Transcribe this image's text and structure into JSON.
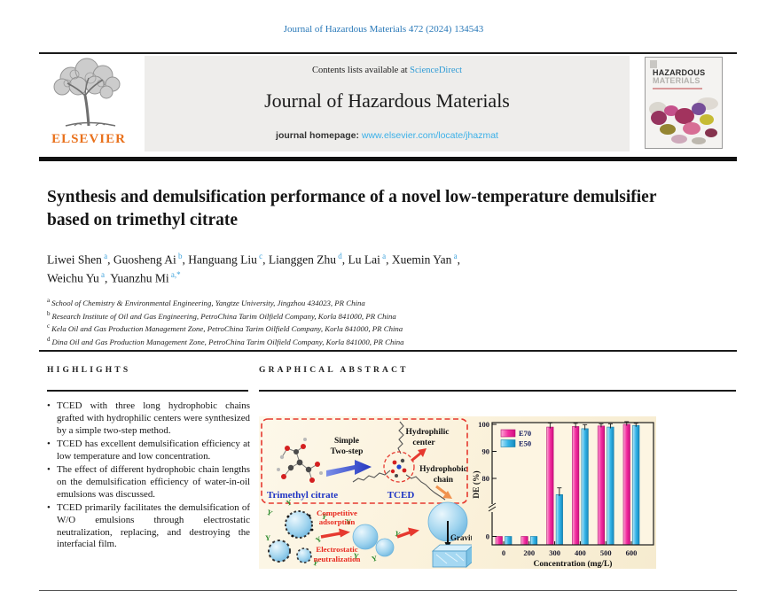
{
  "masthead": {
    "citation": "Journal of Hazardous Materials 472 (2024) 134543",
    "contents_prefix": "Contents lists available at ",
    "contents_link": "ScienceDirect",
    "journal_title": "Journal of Hazardous Materials",
    "homepage_prefix": "journal homepage: ",
    "homepage_url": "www.elsevier.com/locate/jhazmat",
    "publisher": "ELSEVIER",
    "cover_title_line1": "HAZARDOUS",
    "cover_title_line2": "MATERIALS"
  },
  "article": {
    "title": "Synthesis and demulsification performance of a novel low-temperature demulsifier based on trimethyl citrate",
    "authors": [
      {
        "name": "Liwei Shen",
        "sup": "a"
      },
      {
        "name": "Guosheng Ai",
        "sup": "b"
      },
      {
        "name": "Hanguang Liu",
        "sup": "c"
      },
      {
        "name": "Lianggen Zhu",
        "sup": "d"
      },
      {
        "name": "Lu Lai",
        "sup": "a"
      },
      {
        "name": "Xuemin Yan",
        "sup": "a"
      },
      {
        "name": "Weichu Yu",
        "sup": "a"
      },
      {
        "name": "Yuanzhu Mi",
        "sup": "a,*"
      }
    ],
    "authors_break_after": 6,
    "affiliations": [
      {
        "sup": "a",
        "text": "School of Chemistry & Environmental Engineering, Yangtze University, Jingzhou 434023, PR China"
      },
      {
        "sup": "b",
        "text": "Research Institute of Oil and Gas Engineering, PetroChina Tarim Oilfield Company, Korla 841000, PR China"
      },
      {
        "sup": "c",
        "text": "Kela Oil and Gas Production Management Zone, PetroChina Tarim Oilfield Company, Korla 841000, PR China"
      },
      {
        "sup": "d",
        "text": "Dina Oil and Gas Production Management Zone, PetroChina Tarim Oilfield Company, Korla 841000, PR China"
      }
    ]
  },
  "highlights": {
    "heading": "HIGHLIGHTS",
    "items": [
      "TCED with three long hydrophobic chains grafted with hydrophilic centers were synthesized by a simple two-step method.",
      "TCED has excellent demulsification efficiency at low temperature and low concentration.",
      "The effect of different hydrophobic chain lengths on the demulsification efficiency of water-in-oil emulsions was discussed.",
      "TCED primarily facilitates the demulsification of W/O emulsions through electrostatic neutralization, replacing, and destroying the interfacial film."
    ]
  },
  "graphical": {
    "heading": "GRAPHICAL ABSTRACT",
    "labels": {
      "simple_l1": "Simple",
      "simple_l2": "Two-step",
      "trimethyl": "Trimethyl citrate",
      "tced": "TCED",
      "hydrophilic_l1": "Hydrophilic",
      "hydrophilic_l2": "center",
      "hydrophobic_l1": "Hydrophobic",
      "hydrophobic_l2": "chain",
      "competitive_l1": "Competitive",
      "competitive_l2": "adsorption",
      "electrostatic_l1": "Electrostatic",
      "electrostatic_l2": "neutralization",
      "gravity": "Gravity"
    }
  },
  "colors": {
    "link_blue": "#2e9bd6",
    "elsevier_orange": "#e9711c",
    "red_label": "#e8281e",
    "blue_label": "#1f35c4",
    "bar_magenta": "#f42fa0",
    "bar_cyan": "#35b5e8"
  },
  "chart_data": {
    "type": "bar",
    "title": "",
    "xlabel": "Concentration (mg/L)",
    "ylabel": "DE (%)",
    "categories": [
      "0",
      "200",
      "300",
      "400",
      "500",
      "600"
    ],
    "series": [
      {
        "name": "E70",
        "color": "#f42fa0",
        "values": [
          0,
          0,
          99,
          99.2,
          99.4,
          100
        ],
        "errors": [
          0,
          0,
          1.5,
          1.2,
          0.8,
          1.0
        ]
      },
      {
        "name": "E50",
        "color": "#35b5e8",
        "values": [
          0,
          0,
          74,
          98.4,
          99.0,
          99.6
        ],
        "errors": [
          0,
          0,
          2.5,
          1.5,
          1.2,
          0.8
        ]
      }
    ],
    "yticks": [
      0,
      80,
      90,
      100
    ],
    "axis_break": true,
    "ylim_top": [
      72,
      102
    ],
    "ylim_bottom": [
      -1,
      5
    ],
    "grid": false,
    "legend_position": "upper-left"
  }
}
